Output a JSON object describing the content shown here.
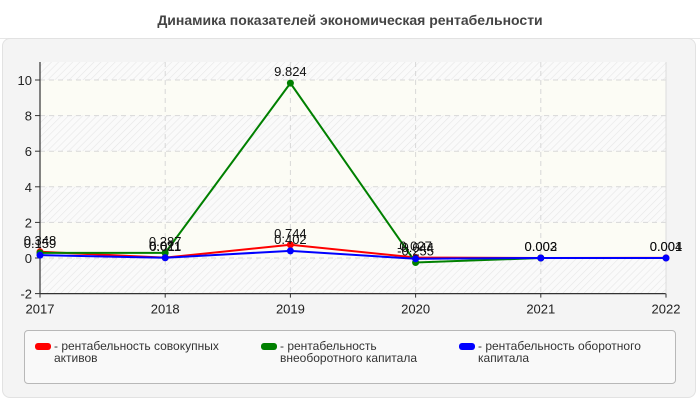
{
  "title": "Динамика показателей экономическая рентабельности",
  "chart_data": {
    "type": "line",
    "title": "Динамика показателей экономическая рентабельности",
    "xlabel": "",
    "ylabel": "",
    "x": [
      "2017",
      "2018",
      "2019",
      "2020",
      "2021",
      "2022"
    ],
    "ylim": [
      -2,
      11
    ],
    "yticks": [
      -2,
      0,
      2,
      4,
      6,
      8,
      10
    ],
    "grid": true,
    "legend_position": "bottom",
    "series": [
      {
        "name": "рентабельность совокупных активов",
        "color": "#ff0000",
        "values": [
          0.348,
          0.021,
          0.744,
          0.027,
          0.003,
          0.004
        ],
        "labels": [
          "0.348",
          "0.021",
          "0.744",
          "0.027",
          "0.003",
          "0.004"
        ]
      },
      {
        "name": "рентабельность внеоборотного капитала",
        "color": "#008000",
        "values": [
          0.287,
          0.287,
          9.824,
          -0.255,
          0.0,
          null
        ],
        "labels": [
          "",
          "0.287",
          "9.824",
          "-0.255",
          "",
          ""
        ]
      },
      {
        "name": "рентабельность оборотного капитала",
        "color": "#0000ff",
        "values": [
          0.159,
          0.011,
          0.402,
          -0.044,
          0.002,
          0.001
        ],
        "labels": [
          "0.159",
          "0.011",
          "0.402",
          "-0.044",
          "0.002",
          "0.001"
        ]
      }
    ]
  },
  "legend": [
    {
      "label": "- рентабельность совокупных активов",
      "color": "#ff0000"
    },
    {
      "label": "- рентабельность внеоборотного капитала",
      "color": "#008000"
    },
    {
      "label": "- рентабельность оборотного капитала",
      "color": "#0000ff"
    }
  ]
}
